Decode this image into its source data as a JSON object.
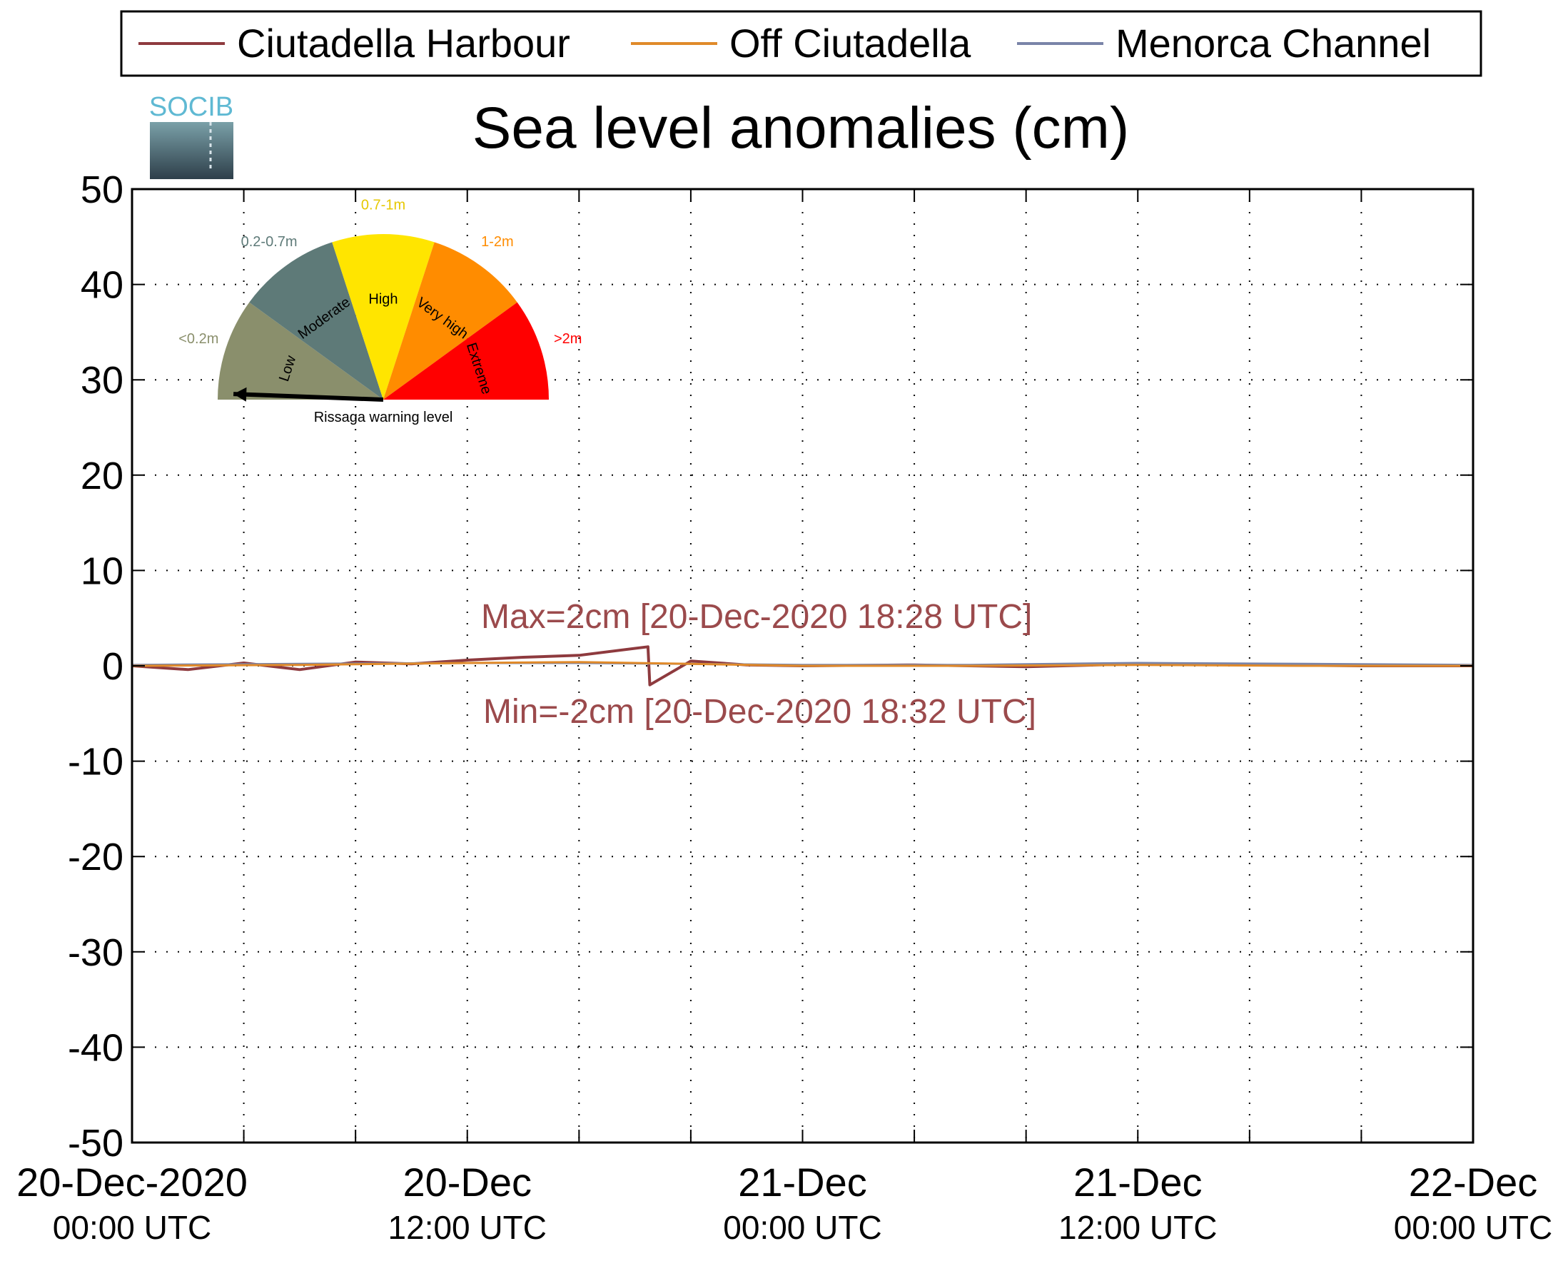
{
  "chart_data": {
    "type": "line",
    "title": "Sea level anomalies (cm)",
    "xlabel": "",
    "ylabel": "",
    "ylim": [
      -50,
      50
    ],
    "yticks": [
      50,
      40,
      30,
      20,
      10,
      0,
      -10,
      -20,
      -30,
      -40,
      -50
    ],
    "x_range": [
      "2020-12-20 00:00",
      "2020-12-22 00:00"
    ],
    "x_ticks": [
      {
        "date": "20-Dec-2020",
        "time": "00:00 UTC"
      },
      {
        "date": "20-Dec",
        "time": "12:00 UTC"
      },
      {
        "date": "21-Dec",
        "time": "00:00 UTC"
      },
      {
        "date": "21-Dec",
        "time": "12:00 UTC"
      },
      {
        "date": "22-Dec",
        "time": "00:00 UTC"
      }
    ],
    "grid": true,
    "legend_position": "top",
    "series": [
      {
        "name": "Ciutadella Harbour",
        "color": "#8e3a3e",
        "points": [
          [
            "2020-12-20 00:00",
            0.0
          ],
          [
            "2020-12-20 02:00",
            -0.4
          ],
          [
            "2020-12-20 04:00",
            0.3
          ],
          [
            "2020-12-20 06:00",
            -0.4
          ],
          [
            "2020-12-20 08:00",
            0.4
          ],
          [
            "2020-12-20 10:00",
            0.2
          ],
          [
            "2020-12-20 12:00",
            0.6
          ],
          [
            "2020-12-20 14:00",
            0.9
          ],
          [
            "2020-12-20 16:00",
            1.1
          ],
          [
            "2020-12-20 18:28",
            2.0
          ],
          [
            "2020-12-20 18:32",
            -2.0
          ],
          [
            "2020-12-20 20:00",
            0.5
          ],
          [
            "2020-12-20 22:00",
            0.1
          ],
          [
            "2020-12-21 00:00",
            0.0
          ],
          [
            "2020-12-21 04:00",
            0.1
          ],
          [
            "2020-12-21 08:00",
            -0.1
          ],
          [
            "2020-12-21 12:00",
            0.2
          ],
          [
            "2020-12-21 16:00",
            0.1
          ],
          [
            "2020-12-21 20:00",
            0.0
          ],
          [
            "2020-12-22 00:00",
            0.0
          ]
        ]
      },
      {
        "name": "Off Ciutadella",
        "color": "#e08a2a",
        "points": [
          [
            "2020-12-20 00:00",
            0.0
          ],
          [
            "2020-12-20 06:00",
            0.1
          ],
          [
            "2020-12-20 12:00",
            0.3
          ],
          [
            "2020-12-20 16:00",
            0.4
          ],
          [
            "2020-12-20 20:00",
            0.2
          ],
          [
            "2020-12-21 00:00",
            0.0
          ],
          [
            "2020-12-21 06:00",
            0.0
          ],
          [
            "2020-12-21 12:00",
            0.1
          ],
          [
            "2020-12-21 18:00",
            0.0
          ],
          [
            "2020-12-22 00:00",
            0.0
          ]
        ]
      },
      {
        "name": "Menorca Channel",
        "color": "#7a84a8",
        "points": [
          [
            "2020-12-20 00:00",
            0.1
          ],
          [
            "2020-12-20 06:00",
            0.2
          ],
          [
            "2020-12-20 12:00",
            0.3
          ],
          [
            "2020-12-20 16:00",
            0.3
          ],
          [
            "2020-12-20 20:00",
            0.2
          ],
          [
            "2020-12-21 00:00",
            0.1
          ],
          [
            "2020-12-21 06:00",
            0.1
          ],
          [
            "2020-12-21 12:00",
            0.3
          ],
          [
            "2020-12-21 18:00",
            0.2
          ],
          [
            "2020-12-22 00:00",
            0.1
          ]
        ]
      }
    ],
    "annotations": [
      {
        "text": "Max=2cm [20-Dec-2020 18:28 UTC]",
        "color": "#9b4a4c"
      },
      {
        "text": "Min=-2cm [20-Dec-2020 18:32 UTC]",
        "color": "#9b4a4c"
      }
    ]
  },
  "logo": {
    "text": "SOCIB"
  },
  "gauge": {
    "caption": "Rissaga warning level",
    "current_level": "Low",
    "sectors": [
      {
        "label": "Low",
        "range": "<0.2m",
        "color": "#8a8f6c",
        "range_color": "#8a8f6c"
      },
      {
        "label": "Moderate",
        "range": "0.2-0.7m",
        "color": "#5e7a78",
        "range_color": "#5e7a78"
      },
      {
        "label": "High",
        "range": "0.7-1m",
        "color": "#ffe500",
        "range_color": "#e6c800"
      },
      {
        "label": "Very high",
        "range": "1-2m",
        "color": "#ff8c00",
        "range_color": "#ff8c00"
      },
      {
        "label": "Extreme",
        "range": ">2m",
        "color": "#ff0000",
        "range_color": "#ff0000"
      }
    ]
  }
}
